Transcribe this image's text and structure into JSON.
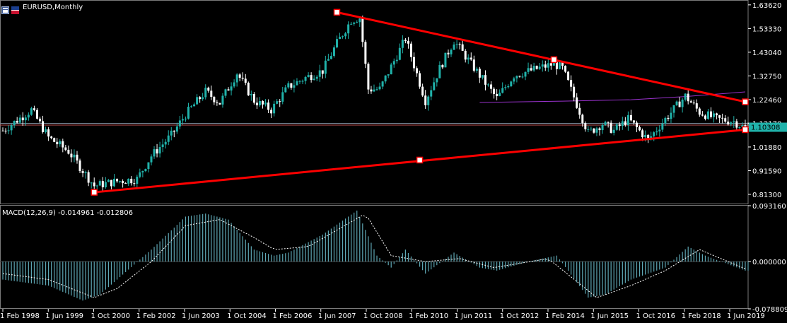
{
  "window": {
    "title": "EURUSD,Monthly",
    "symbol_icon": "chart-window-icon",
    "flag_icon": "currency-flag-icon"
  },
  "macd_label": "MACD(12,26,9) -0.014961 -0.012806",
  "colors": {
    "background": "#000000",
    "candle_up": "#20B2AA",
    "candle_down": "#FFFFFF",
    "trendline": "#FF0000",
    "ma_line": "#9932CC",
    "macd_hist": "#5FA8B5",
    "signal": "#FFFFFF",
    "price_label": "#20B2AA",
    "grid": "#1A1A1A"
  },
  "chart_data": [
    {
      "type": "candlestick",
      "title": "EURUSD,Monthly",
      "y_ticks": [
        "1.63620",
        "1.53330",
        "1.43040",
        "1.32750",
        "1.22460",
        "1.12170",
        "1.01880",
        "0.91590",
        "0.81300"
      ],
      "ylim": [
        0.77,
        1.645
      ],
      "current_price": "1.10308",
      "horizontal_lines": [
        1.1217,
        1.114
      ],
      "trendlines": [
        {
          "from": [
            "2007-11",
            1.604
          ],
          "to": [
            "2019-10",
            1.215
          ]
        },
        {
          "from": [
            "2000-10",
            0.822
          ],
          "to": [
            "2019-10",
            1.094
          ]
        }
      ],
      "anchor_points": [
        [
          "2007-11",
          1.604
        ],
        [
          "2014-03",
          1.398
        ],
        [
          "2000-10",
          0.822
        ],
        [
          "2010-04",
          0.962
        ],
        [
          "2019-10",
          1.215
        ],
        [
          "2019-10",
          1.094
        ]
      ],
      "ma_line_points": [
        [
          "2012-01",
          1.212
        ],
        [
          "2014-06",
          1.218
        ],
        [
          "2016-06",
          1.224
        ],
        [
          "2018-01",
          1.238
        ],
        [
          "2019-10",
          1.258
        ]
      ],
      "price_path": [
        [
          "1998-02",
          1.09
        ],
        [
          "1998-12",
          1.18
        ],
        [
          "1999-06",
          1.06
        ],
        [
          "2000-01",
          1.0
        ],
        [
          "2000-10",
          0.85
        ],
        [
          "2001-06",
          0.87
        ],
        [
          "2002-01",
          0.88
        ],
        [
          "2002-06",
          0.98
        ],
        [
          "2003-01",
          1.07
        ],
        [
          "2003-06",
          1.16
        ],
        [
          "2004-01",
          1.26
        ],
        [
          "2004-06",
          1.21
        ],
        [
          "2004-12",
          1.34
        ],
        [
          "2005-06",
          1.22
        ],
        [
          "2005-12",
          1.18
        ],
        [
          "2006-06",
          1.28
        ],
        [
          "2006-12",
          1.32
        ],
        [
          "2007-06",
          1.35
        ],
        [
          "2007-11",
          1.47
        ],
        [
          "2008-04",
          1.57
        ],
        [
          "2008-07",
          1.58
        ],
        [
          "2008-10",
          1.27
        ],
        [
          "2009-02",
          1.27
        ],
        [
          "2009-11",
          1.49
        ],
        [
          "2010-06",
          1.22
        ],
        [
          "2010-11",
          1.36
        ],
        [
          "2011-04",
          1.48
        ],
        [
          "2011-10",
          1.38
        ],
        [
          "2012-07",
          1.23
        ],
        [
          "2013-01",
          1.33
        ],
        [
          "2014-03",
          1.38
        ],
        [
          "2014-06",
          1.36
        ],
        [
          "2015-03",
          1.08
        ],
        [
          "2015-08",
          1.12
        ],
        [
          "2015-12",
          1.09
        ],
        [
          "2016-05",
          1.14
        ],
        [
          "2016-12",
          1.05
        ],
        [
          "2017-06",
          1.14
        ],
        [
          "2018-01",
          1.24
        ],
        [
          "2018-06",
          1.17
        ],
        [
          "2018-12",
          1.14
        ],
        [
          "2019-06",
          1.13
        ],
        [
          "2019-10",
          1.1
        ]
      ],
      "x_ticks": [
        "1 Feb 1998",
        "1 Jun 1999",
        "1 Oct 2000",
        "1 Feb 2002",
        "1 Jun 2003",
        "1 Oct 2004",
        "1 Feb 2006",
        "1 Jun 2007",
        "1 Oct 2008",
        "1 Feb 2010",
        "1 Jun 2011",
        "1 Oct 2012",
        "1 Feb 2014",
        "1 Jun 2015",
        "1 Oct 2016",
        "1 Feb 2018",
        "1 Jun 2019"
      ]
    },
    {
      "type": "bar",
      "title": "MACD(12,26,9) -0.014961 -0.012806",
      "y_ticks": [
        "0.093160",
        "0.000000",
        "-0.078809"
      ],
      "ylim": [
        -0.0788,
        0.0932
      ],
      "macd_path": [
        [
          "1998-02",
          -0.03
        ],
        [
          "1999-06",
          -0.04
        ],
        [
          "2000-06",
          -0.065
        ],
        [
          "2000-12",
          -0.055
        ],
        [
          "2001-06",
          -0.03
        ],
        [
          "2002-06",
          0.02
        ],
        [
          "2003-06",
          0.075
        ],
        [
          "2004-01",
          0.08
        ],
        [
          "2004-09",
          0.07
        ],
        [
          "2005-06",
          0.02
        ],
        [
          "2006-01",
          0.01
        ],
        [
          "2006-06",
          0.015
        ],
        [
          "2007-06",
          0.045
        ],
        [
          "2008-06",
          0.085
        ],
        [
          "2009-01",
          0.01
        ],
        [
          "2009-06",
          -0.01
        ],
        [
          "2009-11",
          0.02
        ],
        [
          "2010-06",
          -0.02
        ],
        [
          "2011-04",
          0.015
        ],
        [
          "2012-01",
          -0.01
        ],
        [
          "2012-07",
          -0.015
        ],
        [
          "2013-06",
          0.0
        ],
        [
          "2014-04",
          0.01
        ],
        [
          "2015-03",
          -0.06
        ],
        [
          "2015-09",
          -0.055
        ],
        [
          "2016-06",
          -0.03
        ],
        [
          "2017-06",
          -0.01
        ],
        [
          "2018-02",
          0.025
        ],
        [
          "2018-08",
          0.01
        ],
        [
          "2019-10",
          -0.015
        ]
      ],
      "signal_path": [
        [
          "1998-02",
          -0.02
        ],
        [
          "1999-06",
          -0.03
        ],
        [
          "2000-10",
          -0.06
        ],
        [
          "2001-06",
          -0.045
        ],
        [
          "2002-06",
          0.0
        ],
        [
          "2003-06",
          0.06
        ],
        [
          "2004-06",
          0.07
        ],
        [
          "2005-06",
          0.04
        ],
        [
          "2006-01",
          0.02
        ],
        [
          "2007-01",
          0.025
        ],
        [
          "2008-09",
          0.08
        ],
        [
          "2009-06",
          0.01
        ],
        [
          "2010-06",
          0.0
        ],
        [
          "2011-06",
          0.005
        ],
        [
          "2012-06",
          -0.01
        ],
        [
          "2014-01",
          0.005
        ],
        [
          "2015-06",
          -0.06
        ],
        [
          "2016-06",
          -0.04
        ],
        [
          "2017-06",
          -0.015
        ],
        [
          "2018-06",
          0.02
        ],
        [
          "2019-10",
          -0.012
        ]
      ]
    }
  ]
}
